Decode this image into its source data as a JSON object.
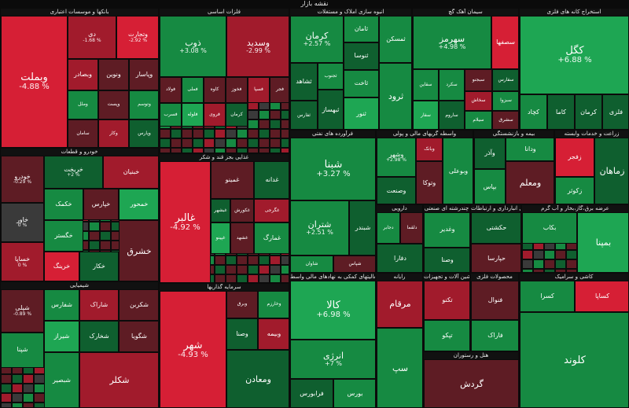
{
  "page": {
    "title": "نقشه بازار"
  },
  "chart_data": {
    "type": "treemap",
    "title": "نقشه بازار",
    "legend": "none",
    "colors": {
      "pos_strong": "#1ea653",
      "pos_mid": "#168a42",
      "pos_weak": "#0f5f2f",
      "neg_strong": "#d61f35",
      "neg_mid": "#a11b2c",
      "neg_weak": "#5e1c24",
      "neutral": "#3a3a3a"
    },
    "sectors": [
      {
        "name": "بانکها و موسسات اعتباری",
        "tiles": [
          {
            "name": "وبملت",
            "change": "-4.88 %",
            "tone": "neg_strong"
          },
          {
            "name": "دی",
            "change": "-1.68 %",
            "tone": "neg_mid"
          },
          {
            "name": "وتجارت",
            "change": "-2.92 %",
            "tone": "neg_strong"
          },
          {
            "name": "وبصادر",
            "change": "",
            "tone": "neg_mid"
          },
          {
            "name": "ونوین",
            "change": "",
            "tone": "neg_weak"
          },
          {
            "name": "وپاسار",
            "change": "",
            "tone": "neg_weak"
          },
          {
            "name": "وپست",
            "change": "",
            "tone": "neg_weak"
          },
          {
            "name": "وملل",
            "change": "",
            "tone": "pos_mid"
          },
          {
            "name": "وتوسم",
            "change": "",
            "tone": "pos_mid"
          },
          {
            "name": "سامان",
            "change": "",
            "tone": "neg_weak"
          },
          {
            "name": "وکار",
            "change": "",
            "tone": "neg_mid"
          },
          {
            "name": "وپارس",
            "change": "",
            "tone": "pos_weak"
          }
        ]
      },
      {
        "name": "فلزات اساسی",
        "tiles": [
          {
            "name": "ذوب",
            "change": "+3.08 %",
            "tone": "pos_mid"
          },
          {
            "name": "وسدید",
            "change": "-2.99 %",
            "tone": "neg_mid"
          },
          {
            "name": "فولاد",
            "change": "",
            "tone": "neg_weak"
          },
          {
            "name": "فملی",
            "change": "",
            "tone": "pos_mid"
          },
          {
            "name": "کاوه",
            "change": "",
            "tone": "neg_weak"
          },
          {
            "name": "فخوز",
            "change": "",
            "tone": "neg_weak"
          },
          {
            "name": "فسپا",
            "change": "",
            "tone": "neg_mid"
          },
          {
            "name": "فجر",
            "change": "",
            "tone": "neg_weak"
          },
          {
            "name": "فسرب",
            "change": "",
            "tone": "pos_mid"
          },
          {
            "name": "فلوله",
            "change": "",
            "tone": "pos_strong"
          },
          {
            "name": "فروی",
            "change": "",
            "tone": "neg_mid"
          },
          {
            "name": "کرمان",
            "change": "",
            "tone": "pos_weak"
          }
        ]
      },
      {
        "name": "انبوه سازی املاک و مستغلات",
        "tiles": [
          {
            "name": "کرمان",
            "change": "+2.57 %",
            "tone": "pos_mid"
          },
          {
            "name": "ثامان",
            "change": "",
            "tone": "pos_mid"
          },
          {
            "name": "ثمسکن",
            "change": "",
            "tone": "pos_mid"
          },
          {
            "name": "ثشاهد",
            "change": "",
            "tone": "pos_weak"
          },
          {
            "name": "ثجنوب",
            "change": "",
            "tone": "pos_mid"
          },
          {
            "name": "ثنوسا",
            "change": "",
            "tone": "pos_weak"
          },
          {
            "name": "ثاخت",
            "change": "",
            "tone": "pos_mid"
          },
          {
            "name": "ثفارس",
            "change": "",
            "tone": "pos_weak"
          },
          {
            "name": "ثبهساز",
            "change": "",
            "tone": "pos_weak"
          },
          {
            "name": "ثنور",
            "change": "",
            "tone": "pos_strong"
          },
          {
            "name": "ثرود",
            "change": "",
            "tone": "pos_mid"
          }
        ]
      },
      {
        "name": "سیمان آهک گچ",
        "tiles": [
          {
            "name": "سهرمز",
            "change": "+4.98 %",
            "tone": "pos_mid"
          },
          {
            "name": "سصفها",
            "change": "",
            "tone": "neg_strong"
          },
          {
            "name": "سقاین",
            "change": "",
            "tone": "pos_mid"
          },
          {
            "name": "سفار",
            "change": "",
            "tone": "pos_strong"
          },
          {
            "name": "سکرد",
            "change": "",
            "tone": "pos_mid"
          },
          {
            "name": "سبجنو",
            "change": "",
            "tone": "neg_weak"
          },
          {
            "name": "سخاش",
            "change": "",
            "tone": "neg_mid"
          },
          {
            "name": "سفارس",
            "change": "",
            "tone": "pos_weak"
          },
          {
            "name": "سبزوا",
            "change": "",
            "tone": "pos_mid"
          },
          {
            "name": "ساروم",
            "change": "",
            "tone": "pos_weak"
          },
          {
            "name": "سیلام",
            "change": "",
            "tone": "pos_mid"
          },
          {
            "name": "سشرق",
            "change": "",
            "tone": "neg_weak"
          }
        ]
      },
      {
        "name": "استخراج کانه های فلزی",
        "tiles": [
          {
            "name": "کگل",
            "change": "+6.88 %",
            "tone": "pos_strong"
          },
          {
            "name": "کچاد",
            "change": "",
            "tone": "pos_mid"
          },
          {
            "name": "کاما",
            "change": "",
            "tone": "pos_weak"
          },
          {
            "name": "کرمان",
            "change": "",
            "tone": "pos_weak"
          },
          {
            "name": "فلزی",
            "change": "",
            "tone": "pos_weak"
          },
          {
            "name": "کدما",
            "change": "",
            "tone": "pos_mid"
          }
        ]
      },
      {
        "name": "خودرو و قطعات",
        "tiles": [
          {
            "name": "خودرو",
            "change": "-0.29 %",
            "tone": "neg_weak"
          },
          {
            "name": "خریخت",
            "change": "+2 %",
            "tone": "pos_weak"
          },
          {
            "name": "خاور",
            "change": "0 %",
            "tone": "neutral"
          },
          {
            "name": "خساپا",
            "change": "0 %",
            "tone": "neg_mid"
          },
          {
            "name": "خکمک",
            "change": "",
            "tone": "pos_mid"
          },
          {
            "name": "خبنیان",
            "change": "",
            "tone": "neg_mid"
          },
          {
            "name": "خپارس",
            "change": "",
            "tone": "neg_weak"
          },
          {
            "name": "خگستر",
            "change": "",
            "tone": "pos_mid"
          },
          {
            "name": "خمحور",
            "change": "",
            "tone": "pos_strong"
          },
          {
            "name": "خرینگ",
            "change": "",
            "tone": "neg_strong"
          },
          {
            "name": "خکار",
            "change": "",
            "tone": "pos_weak"
          },
          {
            "name": "خشرق",
            "change": "",
            "tone": "neg_weak"
          }
        ]
      },
      {
        "name": "غذایی بجز قند و شکر",
        "tiles": [
          {
            "name": "غالبر",
            "change": "-4.92 %",
            "tone": "neg_strong"
          },
          {
            "name": "غمینو",
            "change": "",
            "tone": "neg_weak"
          },
          {
            "name": "غدانه",
            "change": "",
            "tone": "pos_weak"
          },
          {
            "name": "غبشهر",
            "change": "",
            "tone": "pos_weak"
          },
          {
            "name": "غکورش",
            "change": "",
            "tone": "neg_weak"
          },
          {
            "name": "غگرجی",
            "change": "",
            "tone": "neg_mid"
          },
          {
            "name": "غپینو",
            "change": "",
            "tone": "pos_strong"
          },
          {
            "name": "غشهد",
            "change": "",
            "tone": "neg_weak"
          },
          {
            "name": "غمارگ",
            "change": "",
            "tone": "pos_mid"
          }
        ]
      },
      {
        "name": "فرآورده های نفتی",
        "tiles": [
          {
            "name": "شبنا",
            "change": "+3.27 %",
            "tone": "pos_mid"
          },
          {
            "name": "شتران",
            "change": "+2.51 %",
            "tone": "pos_mid"
          },
          {
            "name": "شبندر",
            "change": "",
            "tone": "pos_weak"
          },
          {
            "name": "شاوان",
            "change": "",
            "tone": "pos_mid"
          },
          {
            "name": "شپاس",
            "change": "",
            "tone": "neg_weak"
          },
          {
            "name": "شسپا",
            "change": "",
            "tone": "pos_weak"
          }
        ]
      },
      {
        "name": "واسطه گریهای مالی و پولی",
        "tiles": [
          {
            "name": "وشهر",
            "change": "+2.98 %",
            "tone": "pos_mid"
          },
          {
            "name": "وبانک",
            "change": "",
            "tone": "neg_mid"
          },
          {
            "name": "وبوعلی",
            "change": "",
            "tone": "pos_mid"
          },
          {
            "name": "وصنعت",
            "change": "",
            "tone": "pos_weak"
          },
          {
            "name": "وتوکا",
            "change": "",
            "tone": "neg_weak"
          }
        ]
      },
      {
        "name": "بیمه و بازنشستگی",
        "tiles": [
          {
            "name": "وآذر",
            "change": "",
            "tone": "pos_weak"
          },
          {
            "name": "ودانا",
            "change": "",
            "tone": "pos_mid"
          },
          {
            "name": "بپاس",
            "change": "",
            "tone": "pos_mid"
          },
          {
            "name": "ومعلم",
            "change": "",
            "tone": "neg_weak"
          }
        ]
      },
      {
        "name": "زراعت و خدمات وابسته",
        "tiles": [
          {
            "name": "زفجر",
            "change": "",
            "tone": "neg_strong"
          },
          {
            "name": "زکوثر",
            "change": "",
            "tone": "pos_mid"
          },
          {
            "name": "زماهان",
            "change": "",
            "tone": "pos_weak"
          }
        ]
      },
      {
        "name": "دارویی",
        "tiles": [
          {
            "name": "دجابر",
            "change": "",
            "tone": "pos_mid"
          },
          {
            "name": "دلقما",
            "change": "",
            "tone": "neg_weak"
          },
          {
            "name": "دفارا",
            "change": "",
            "tone": "pos_weak"
          }
        ]
      },
      {
        "name": "چندرشته ای صنعتی",
        "tiles": [
          {
            "name": "وغدیر",
            "change": "",
            "tone": "pos_mid"
          },
          {
            "name": "وصنا",
            "change": "",
            "tone": "pos_weak"
          }
        ]
      },
      {
        "name": "حمل و نقل انبارداری و ارتباطات",
        "tiles": [
          {
            "name": "حکشتی",
            "change": "",
            "tone": "pos_weak"
          },
          {
            "name": "حپارسا",
            "change": "",
            "tone": "neg_weak"
          }
        ]
      },
      {
        "name": "عرضه برق،گاز،بخار و آب گرم",
        "tiles": [
          {
            "name": "بکاب",
            "change": "",
            "tone": "pos_mid"
          },
          {
            "name": "بمپنا",
            "change": "",
            "tone": "pos_strong"
          }
        ]
      },
      {
        "name": "شیمیایی",
        "tiles": [
          {
            "name": "شپلی",
            "change": "-0.89 %",
            "tone": "neg_weak"
          },
          {
            "name": "شفارس",
            "change": "",
            "tone": "pos_mid"
          },
          {
            "name": "شاراک",
            "change": "",
            "tone": "neg_mid"
          },
          {
            "name": "شکربن",
            "change": "",
            "tone": "neg_weak"
          },
          {
            "name": "شپنا",
            "change": "",
            "tone": "pos_mid"
          },
          {
            "name": "شیراز",
            "change": "",
            "tone": "pos_strong"
          },
          {
            "name": "شخارک",
            "change": "",
            "tone": "pos_weak"
          },
          {
            "name": "شگویا",
            "change": "",
            "tone": "neg_weak"
          },
          {
            "name": "شبصیر",
            "change": "",
            "tone": "pos_mid"
          },
          {
            "name": "شکلر",
            "change": "",
            "tone": "neg_mid"
          }
        ]
      },
      {
        "name": "سرمایه گذاریها",
        "tiles": [
          {
            "name": "شهر",
            "change": "-4.93 %",
            "tone": "neg_strong"
          },
          {
            "name": "وبرق",
            "change": "",
            "tone": "neg_weak"
          },
          {
            "name": "وخارزم",
            "change": "",
            "tone": "pos_mid"
          },
          {
            "name": "وصنا",
            "change": "",
            "tone": "pos_weak"
          },
          {
            "name": "وبیمه",
            "change": "",
            "tone": "neg_mid"
          },
          {
            "name": "ومعادن",
            "change": "",
            "tone": "pos_weak"
          }
        ]
      },
      {
        "name": "فعالیتهای کمکی به نهادهای مالی واسط",
        "tiles": [
          {
            "name": "کالا",
            "change": "+6.98 %",
            "tone": "pos_strong"
          },
          {
            "name": "انرژی",
            "change": "+7 %",
            "tone": "pos_mid"
          },
          {
            "name": "فرابورس",
            "change": "",
            "tone": "pos_weak"
          },
          {
            "name": "بورس",
            "change": "",
            "tone": "pos_mid"
          }
        ]
      },
      {
        "name": "کاشی و سرامیک",
        "tiles": [
          {
            "name": "کسرا",
            "change": "",
            "tone": "pos_mid"
          },
          {
            "name": "کساپا",
            "change": "",
            "tone": "neg_strong"
          },
          {
            "name": "کلوند",
            "change": "",
            "tone": "pos_mid"
          }
        ]
      },
      {
        "name": "محصولات فلزی",
        "tiles": [
          {
            "name": "فنوال",
            "change": "",
            "tone": "neg_weak"
          },
          {
            "name": "فاراک",
            "change": "",
            "tone": "pos_mid"
          }
        ]
      },
      {
        "name": "رایانه",
        "tiles": [
          {
            "name": "مرقام",
            "change": "",
            "tone": "neg_mid"
          },
          {
            "name": "سپ",
            "change": "",
            "tone": "pos_mid"
          }
        ]
      },
      {
        "name": "ماشین آلات و تجهیزات",
        "tiles": [
          {
            "name": "تکنو",
            "change": "",
            "tone": "neg_mid"
          },
          {
            "name": "تپکو",
            "change": "",
            "tone": "pos_mid"
          }
        ]
      },
      {
        "name": "هتل و رستوران",
        "tiles": [
          {
            "name": "گردش",
            "change": "",
            "tone": "neg_weak"
          }
        ]
      }
    ]
  }
}
